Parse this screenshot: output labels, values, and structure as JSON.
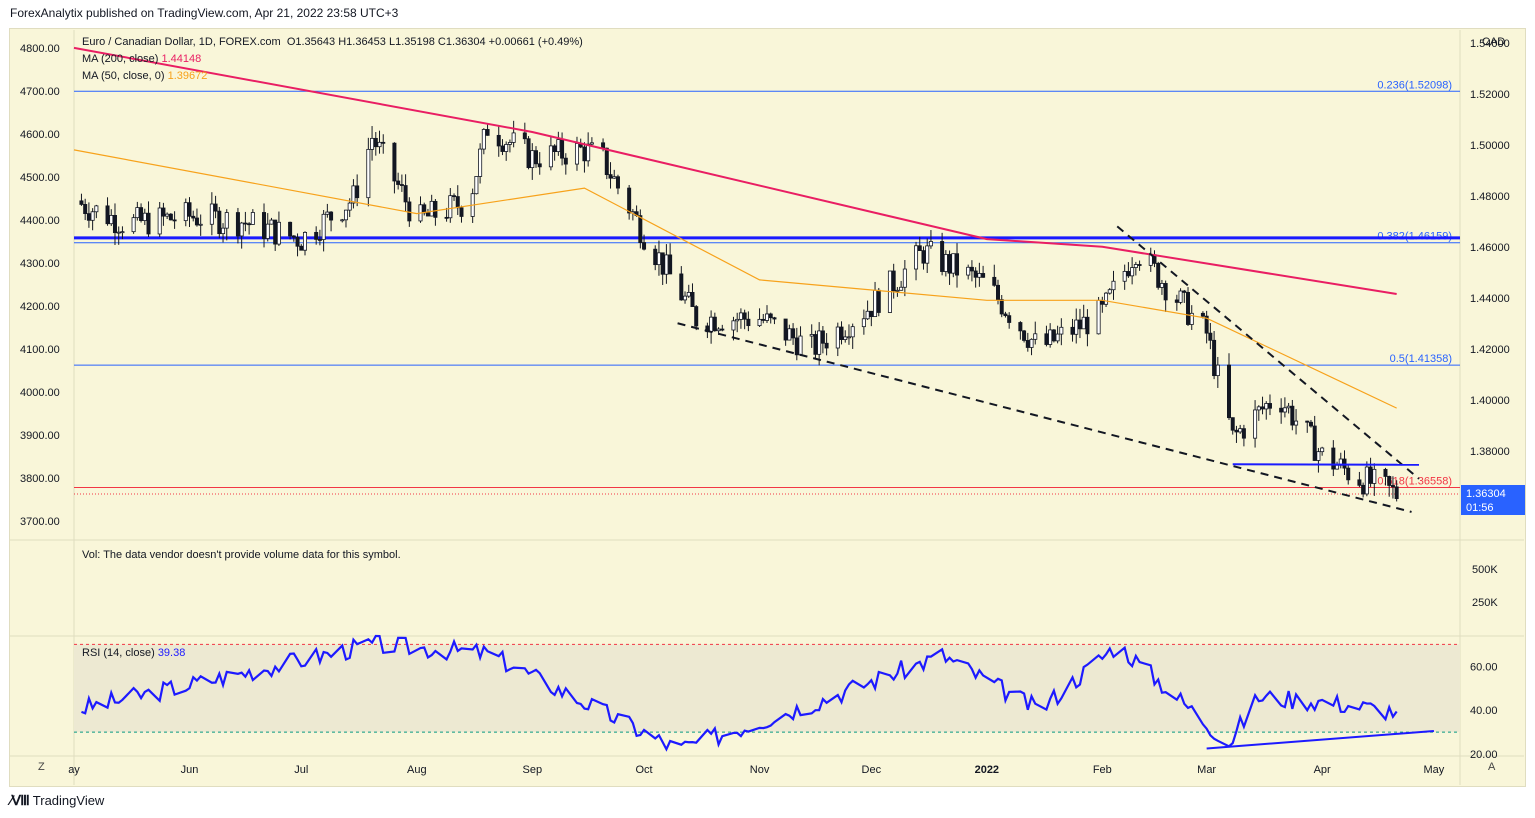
{
  "header": {
    "publisher": "ForexAnalytix published on TradingView.com, Apr 21, 2022 23:58 UTC+3"
  },
  "legend": {
    "symbol": "Euro / Canadian Dollar, 1D, FOREX.com",
    "ohlc": "O1.35643  H1.36453  L1.35198  C1.36304  +0.00661 (+0.49%)",
    "ma200_label": "MA (200, close)",
    "ma200_value": "1.44148",
    "ma50_label": "MA (50, close, 0)",
    "ma50_value": "1.39672",
    "vol_note": "Vol: The data vendor doesn't provide volume data for this symbol.",
    "rsi_label": "RSI (14, close)",
    "rsi_value": "39.38"
  },
  "price_pane": {
    "currency": "CAD",
    "last_price": "1.36304",
    "countdown": "01:56",
    "left_ticks": [
      "4800.00",
      "4700.00",
      "4600.00",
      "4500.00",
      "4400.00",
      "4300.00",
      "4200.00",
      "4100.00",
      "4000.00",
      "3900.00",
      "3800.00",
      "3700.00"
    ],
    "right_ticks": [
      "1.54000",
      "1.52000",
      "1.50000",
      "1.48000",
      "1.46000",
      "1.44000",
      "1.42000",
      "1.40000",
      "1.38000"
    ],
    "fib_levels": [
      {
        "label": "0.236(1.52098)",
        "price": 1.52098,
        "color": "#2962ff"
      },
      {
        "label": "0.382(1.46159)",
        "price": 1.46159,
        "color": "#2962ff"
      },
      {
        "label": "0.5(1.41358)",
        "price": 1.41358,
        "color": "#2962ff"
      },
      {
        "label": "0.618(1.36558)",
        "price": 1.36558,
        "color": "#f23645"
      }
    ]
  },
  "volume_pane": {
    "ticks": [
      "500K",
      "250K"
    ]
  },
  "rsi_pane": {
    "ticks": [
      "60.00",
      "40.00",
      "20.00"
    ],
    "upper": 70,
    "lower": 30
  },
  "x_axis": {
    "labels": [
      "ay",
      "Jun",
      "Jul",
      "Aug",
      "Sep",
      "Oct",
      "Nov",
      "Dec",
      "2022",
      "Feb",
      "Mar",
      "Apr",
      "May"
    ]
  },
  "buttons": {
    "z": "Z",
    "a": "A"
  },
  "footer": {
    "brand": "TradingView"
  },
  "colors": {
    "ma200": "#e91e63",
    "ma50": "#f7a21b",
    "rsi": "#1d1aff",
    "up": "#ffffff",
    "down": "#131722",
    "support": "#1a1aff"
  },
  "chart_data": {
    "type": "line",
    "title": "Euro / Canadian Dollar, 1D, FOREX.com",
    "close_series": {
      "dates": [
        "2021-05-01",
        "2021-05-15",
        "2021-06-01",
        "2021-06-15",
        "2021-07-01",
        "2021-07-15",
        "2021-07-20",
        "2021-08-01",
        "2021-08-15",
        "2021-08-20",
        "2021-09-01",
        "2021-09-15",
        "2021-09-20",
        "2021-10-01",
        "2021-10-15",
        "2021-11-01",
        "2021-11-15",
        "2021-12-01",
        "2021-12-15",
        "2022-01-01",
        "2022-01-15",
        "2022-02-01",
        "2022-02-10",
        "2022-03-01",
        "2022-03-08",
        "2022-03-20",
        "2022-04-01",
        "2022-04-10",
        "2022-04-21"
      ],
      "values": [
        1.478,
        1.469,
        1.472,
        1.47,
        1.463,
        1.479,
        1.503,
        1.47,
        1.478,
        1.507,
        1.495,
        1.498,
        1.494,
        1.465,
        1.432,
        1.432,
        1.42,
        1.437,
        1.458,
        1.445,
        1.42,
        1.434,
        1.459,
        1.426,
        1.385,
        1.402,
        1.378,
        1.37,
        1.36304
      ]
    },
    "ma200": {
      "dates": [
        "2021-05-01",
        "2021-09-01",
        "2022-01-01",
        "2022-02-01",
        "2022-04-21"
      ],
      "values": [
        1.538,
        1.505,
        1.463,
        1.46,
        1.44148
      ]
    },
    "ma50": {
      "dates": [
        "2021-05-01",
        "2021-08-01",
        "2021-09-15",
        "2021-11-01",
        "2022-01-01",
        "2022-02-01",
        "2022-03-01",
        "2022-04-21"
      ],
      "values": [
        1.498,
        1.473,
        1.483,
        1.447,
        1.439,
        1.439,
        1.432,
        1.39672
      ]
    },
    "rsi": {
      "dates": [
        "2021-05-01",
        "2021-07-20",
        "2021-08-20",
        "2021-10-10",
        "2021-11-15",
        "2021-12-20",
        "2022-01-15",
        "2022-02-05",
        "2022-03-07",
        "2022-03-15",
        "2022-04-01",
        "2022-04-21"
      ],
      "values": [
        40,
        70,
        66,
        22,
        43,
        65,
        40,
        70,
        25,
        46,
        44,
        39.38
      ]
    },
    "ylim": [
      1.345,
      1.545
    ],
    "rsi_ylim": [
      20,
      72
    ]
  }
}
